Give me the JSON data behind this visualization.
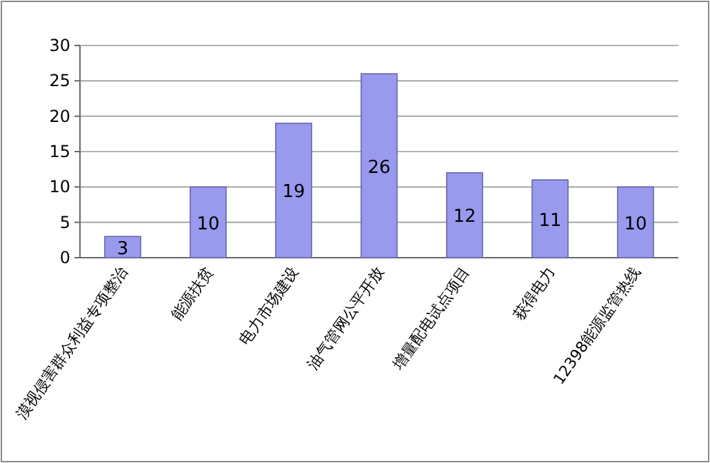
{
  "chart_data": {
    "type": "bar",
    "categories": [
      "漠视侵害群众利益专项整治",
      "能源扶贫",
      "电力市场建设",
      "油气管网公平开放",
      "增量配电试点项目",
      "获得电力",
      "12398能源监管热线"
    ],
    "values": [
      3,
      10,
      19,
      26,
      12,
      11,
      10
    ],
    "color": "#9999ee",
    "ylim": [
      0,
      30
    ],
    "yticks": [
      0,
      5,
      10,
      15,
      20,
      25,
      30
    ],
    "grid": "y",
    "data_labels": true
  }
}
